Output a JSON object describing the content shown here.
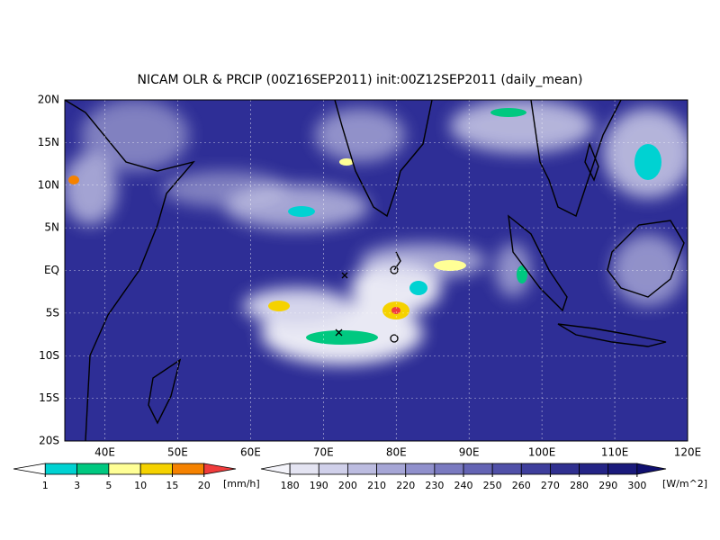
{
  "title": "NICAM OLR & PRCIP (00Z16SEP2011) init:00Z12SEP2011 (daily_mean)",
  "map": {
    "xlim": [
      34.5,
      120
    ],
    "ylim": [
      -20,
      20
    ],
    "xticks": [
      {
        "value": 40,
        "label": "40E"
      },
      {
        "value": 50,
        "label": "50E"
      },
      {
        "value": 60,
        "label": "60E"
      },
      {
        "value": 70,
        "label": "70E"
      },
      {
        "value": 80,
        "label": "80E"
      },
      {
        "value": 90,
        "label": "90E"
      },
      {
        "value": 100,
        "label": "100E"
      },
      {
        "value": 110,
        "label": "110E"
      },
      {
        "value": 120,
        "label": "120E"
      }
    ],
    "yticks": [
      {
        "value": 20,
        "label": "20N"
      },
      {
        "value": 15,
        "label": "15N"
      },
      {
        "value": 10,
        "label": "10N"
      },
      {
        "value": 5,
        "label": "5N"
      },
      {
        "value": 0,
        "label": "EQ"
      },
      {
        "value": -5,
        "label": "5S"
      },
      {
        "value": -10,
        "label": "10S"
      },
      {
        "value": -15,
        "label": "15S"
      },
      {
        "value": -20,
        "label": "20S"
      }
    ],
    "grid": true
  },
  "legends": [
    {
      "levels": [
        1,
        3,
        5,
        10,
        15,
        20
      ],
      "unit": "[mm/h]",
      "colors": [
        "#ffffff",
        "#00d2d2",
        "#00c880",
        "#ffff96",
        "#f5d200",
        "#f58200",
        "#f03c3c"
      ]
    },
    {
      "levels": [
        180,
        190,
        200,
        210,
        220,
        230,
        240,
        250,
        260,
        270,
        280,
        290,
        300
      ],
      "unit": "[W/m^2]",
      "colors": [
        "#f4f4fa",
        "#e4e4f2",
        "#d0d0ea",
        "#bcbce0",
        "#a6a6d6",
        "#9090cc",
        "#7a7ac0",
        "#6464b4",
        "#5050a8",
        "#3e3e9c",
        "#303090",
        "#242486",
        "#1a1a7c",
        "#101070"
      ]
    }
  ]
}
